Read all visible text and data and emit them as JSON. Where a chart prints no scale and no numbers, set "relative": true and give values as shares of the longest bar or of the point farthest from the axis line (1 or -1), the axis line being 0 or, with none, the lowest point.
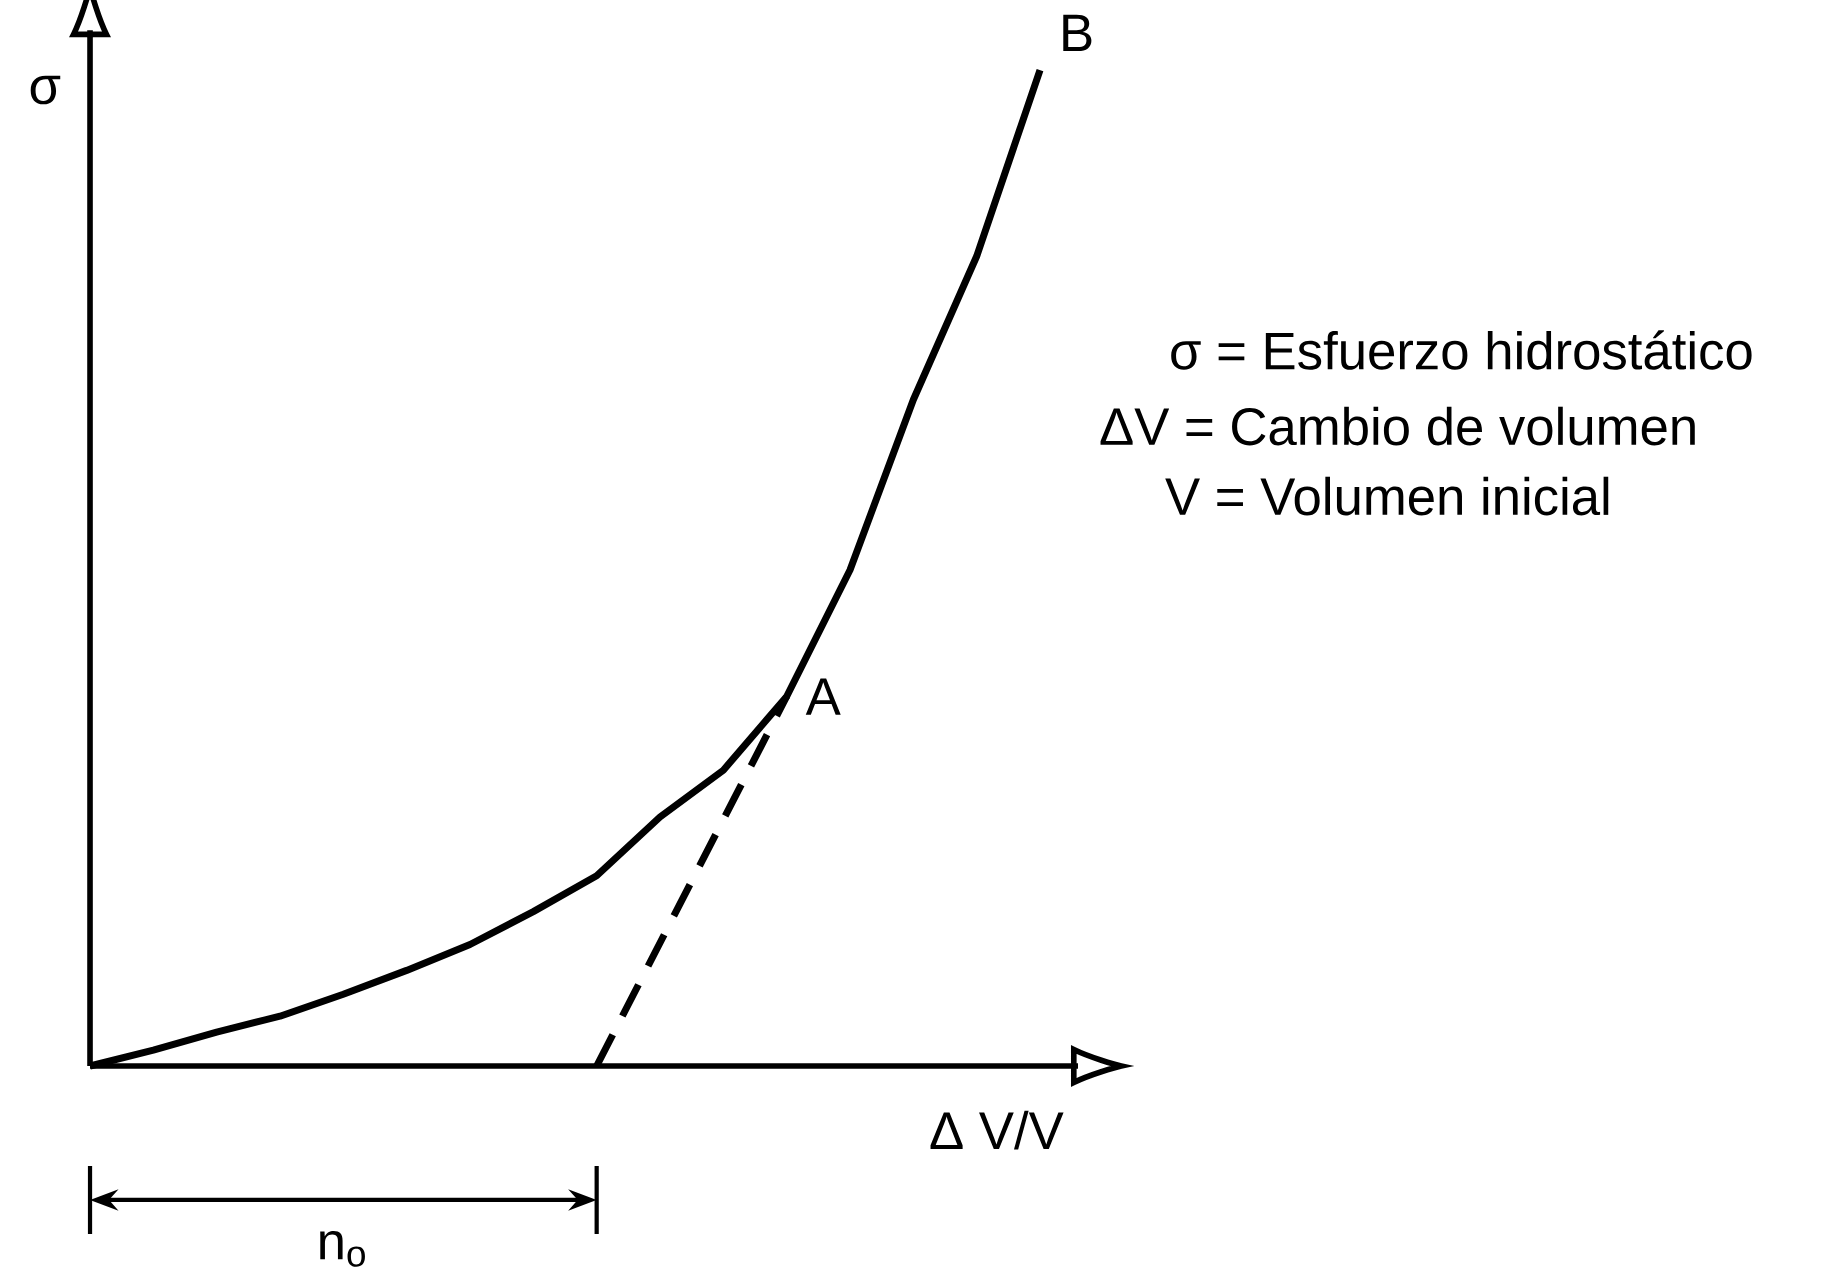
{
  "chart_data": {
    "type": "line",
    "relative": true,
    "xlabel": "Δ V/V",
    "ylabel": "σ",
    "marker": "none",
    "categories": [
      null,
      null,
      null,
      null,
      null,
      null,
      null,
      null,
      null,
      null,
      null,
      null,
      null,
      null,
      null,
      null
    ],
    "series": [
      {
        "color": "#000000",
        "line_style": "solid",
        "values": [
          0,
          0.016,
          0.034,
          0.05,
          0.072,
          0.096,
          0.122,
          0.155,
          0.191,
          0.25,
          0.297,
          0.371,
          0.498,
          0.669,
          0.813,
          1
        ]
      },
      {
        "color": "#000000",
        "line_style": "dashed",
        "values": [
          null,
          null,
          null,
          null,
          null,
          null,
          null,
          null,
          0,
          null,
          null,
          0.371,
          null,
          null,
          null,
          null
        ]
      }
    ],
    "annotations": [
      "A",
      "B",
      "σ = Esfuerzo hidrostático",
      "ΔV = Cambio de volumen",
      "V = Volumen inicial",
      "n$_{o}$"
    ]
  }
}
